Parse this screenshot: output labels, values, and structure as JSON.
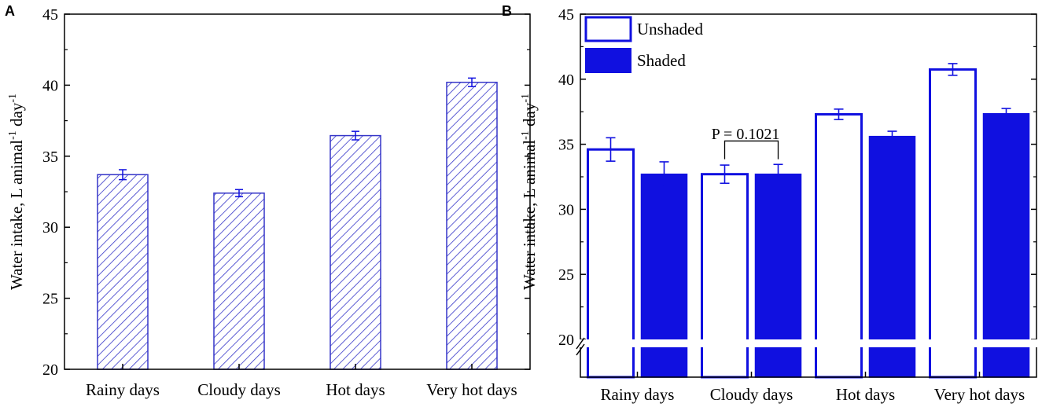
{
  "colors": {
    "bar": "#1010e0",
    "hatch": "#3535c8",
    "axis": "#000000"
  },
  "panels": {
    "a": "A",
    "b": "B"
  },
  "chart_data": [
    {
      "id": "A",
      "type": "bar",
      "categories": [
        "Rainy days",
        "Cloudy days",
        "Hot days",
        "Very hot days"
      ],
      "values": [
        33.7,
        32.4,
        36.45,
        40.2
      ],
      "errors": [
        0.35,
        0.25,
        0.3,
        0.3
      ],
      "fill": "hatched",
      "ylabel": "Water intake, L animal",
      "ylabel_sup1": "-1",
      "ylabel_mid": " day",
      "ylabel_sup2": "-1",
      "ylim": [
        20,
        45
      ],
      "yticks": [
        20,
        25,
        30,
        35,
        40,
        45
      ]
    },
    {
      "id": "B",
      "type": "bar",
      "categories": [
        "Rainy days",
        "Cloudy days",
        "Hot days",
        "Very hot days"
      ],
      "series": [
        {
          "name": "Unshaded",
          "fill": "open",
          "values": [
            34.6,
            32.7,
            37.3,
            40.75
          ],
          "errors": [
            0.9,
            0.7,
            0.4,
            0.45
          ]
        },
        {
          "name": "Shaded",
          "fill": "solid",
          "values": [
            32.7,
            32.7,
            35.6,
            37.35
          ],
          "errors": [
            0.95,
            0.75,
            0.4,
            0.4
          ]
        }
      ],
      "ylabel": "Water intake, L animal",
      "ylabel_sup1": "-1",
      "ylabel_mid": " day",
      "ylabel_sup2": "-1",
      "ylim": [
        20,
        45
      ],
      "yticks": [
        20,
        25,
        30,
        35,
        40,
        45
      ],
      "axis_break": true,
      "annotation": {
        "text": "P = 0.1021",
        "category": "Cloudy days"
      },
      "legend": {
        "position": "top-left",
        "entries": [
          "Unshaded",
          "Shaded"
        ]
      }
    }
  ]
}
